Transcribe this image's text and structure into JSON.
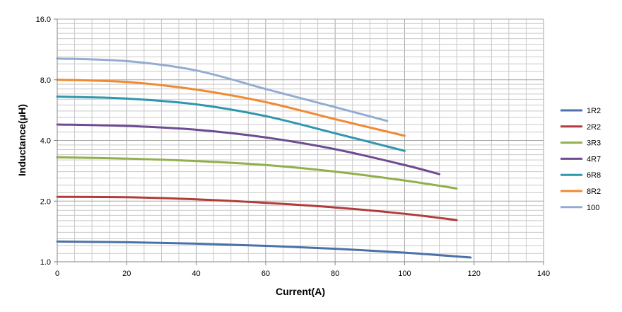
{
  "chart_data": {
    "type": "line",
    "title": "",
    "xlabel": "Current(A)",
    "ylabel": "Inductance(μH)",
    "xlim": [
      0,
      140
    ],
    "ylim": [
      1.0,
      16.0
    ],
    "yscale": "log2",
    "xticks": [
      0,
      20,
      40,
      60,
      80,
      100,
      120,
      140
    ],
    "yticks": [
      1.0,
      2.0,
      4.0,
      8.0,
      16.0
    ],
    "xtick_labels": [
      "0",
      "20",
      "40",
      "60",
      "80",
      "100",
      "120",
      "140"
    ],
    "ytick_labels": [
      "1.0",
      "2.0",
      "4.0",
      "8.0",
      "16.0"
    ],
    "grid": true,
    "legend_position": "right",
    "series": [
      {
        "name": "1R2",
        "color": "#4a72a8",
        "x": [
          0,
          20,
          40,
          60,
          80,
          100,
          119
        ],
        "y": [
          1.26,
          1.25,
          1.23,
          1.2,
          1.16,
          1.11,
          1.05
        ]
      },
      {
        "name": "2R2",
        "color": "#b23c3a",
        "x": [
          0,
          20,
          40,
          60,
          80,
          100,
          115
        ],
        "y": [
          2.1,
          2.09,
          2.04,
          1.96,
          1.86,
          1.73,
          1.61
        ]
      },
      {
        "name": "3R3",
        "color": "#90b04a",
        "x": [
          0,
          20,
          40,
          60,
          80,
          100,
          115
        ],
        "y": [
          3.3,
          3.25,
          3.16,
          3.02,
          2.8,
          2.53,
          2.31
        ]
      },
      {
        "name": "4R7",
        "color": "#6d4b93",
        "x": [
          0,
          20,
          40,
          60,
          80,
          100,
          110
        ],
        "y": [
          4.8,
          4.72,
          4.52,
          4.14,
          3.62,
          3.02,
          2.72
        ]
      },
      {
        "name": "6R8",
        "color": "#2f97ad",
        "x": [
          0,
          20,
          40,
          60,
          80,
          100
        ],
        "y": [
          6.6,
          6.45,
          6.04,
          5.28,
          4.34,
          3.55
        ]
      },
      {
        "name": "8R2",
        "color": "#ef8a32",
        "x": [
          0,
          20,
          40,
          60,
          80,
          100
        ],
        "y": [
          8.0,
          7.8,
          7.15,
          6.2,
          5.1,
          4.22
        ]
      },
      {
        "name": "100",
        "color": "#93acd2",
        "x": [
          0,
          20,
          40,
          60,
          80,
          95
        ],
        "y": [
          10.2,
          9.9,
          8.9,
          7.2,
          5.85,
          5.0
        ]
      }
    ]
  }
}
